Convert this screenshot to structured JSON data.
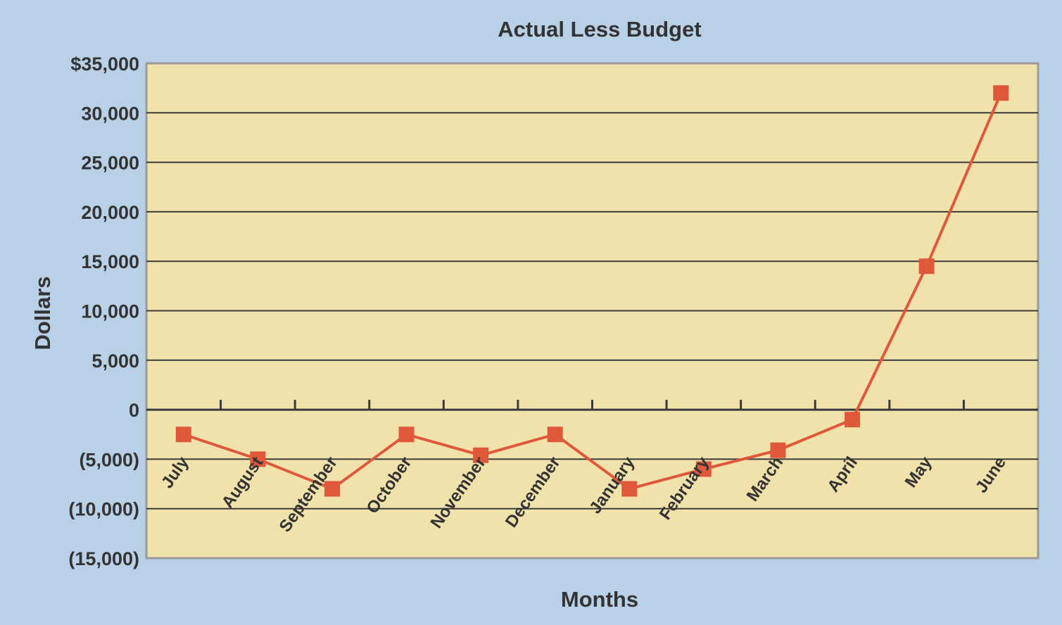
{
  "chart_data": {
    "type": "line",
    "title": "Actual Less Budget",
    "xlabel": "Months",
    "ylabel": "Dollars",
    "categories": [
      "July",
      "August",
      "September",
      "October",
      "November",
      "December",
      "January",
      "February",
      "March",
      "April",
      "May",
      "June"
    ],
    "series": [
      {
        "values": [
          -2500,
          -5000,
          -8000,
          -2500,
          -4600,
          -2500,
          -8000,
          -6000,
          -4100,
          -1000,
          14500,
          32000
        ]
      }
    ],
    "ylim": [
      -15000,
      35000
    ],
    "yticks": [
      35000,
      30000,
      25000,
      20000,
      15000,
      10000,
      5000,
      0,
      -5000,
      -10000,
      -15000
    ],
    "ytick_labels": [
      "$35,000",
      "30,000",
      "25,000",
      "20,000",
      "15,000",
      "10,000",
      "5,000",
      "0",
      "(5,000)",
      "(10,000)",
      "(15,000)"
    ],
    "grid": true,
    "colors": {
      "page_background": "#b9d1e6",
      "plot_background": "#f0e2aa",
      "line": "#e0583a",
      "marker": "#e0583a",
      "grid": "#3a3a3a"
    }
  }
}
